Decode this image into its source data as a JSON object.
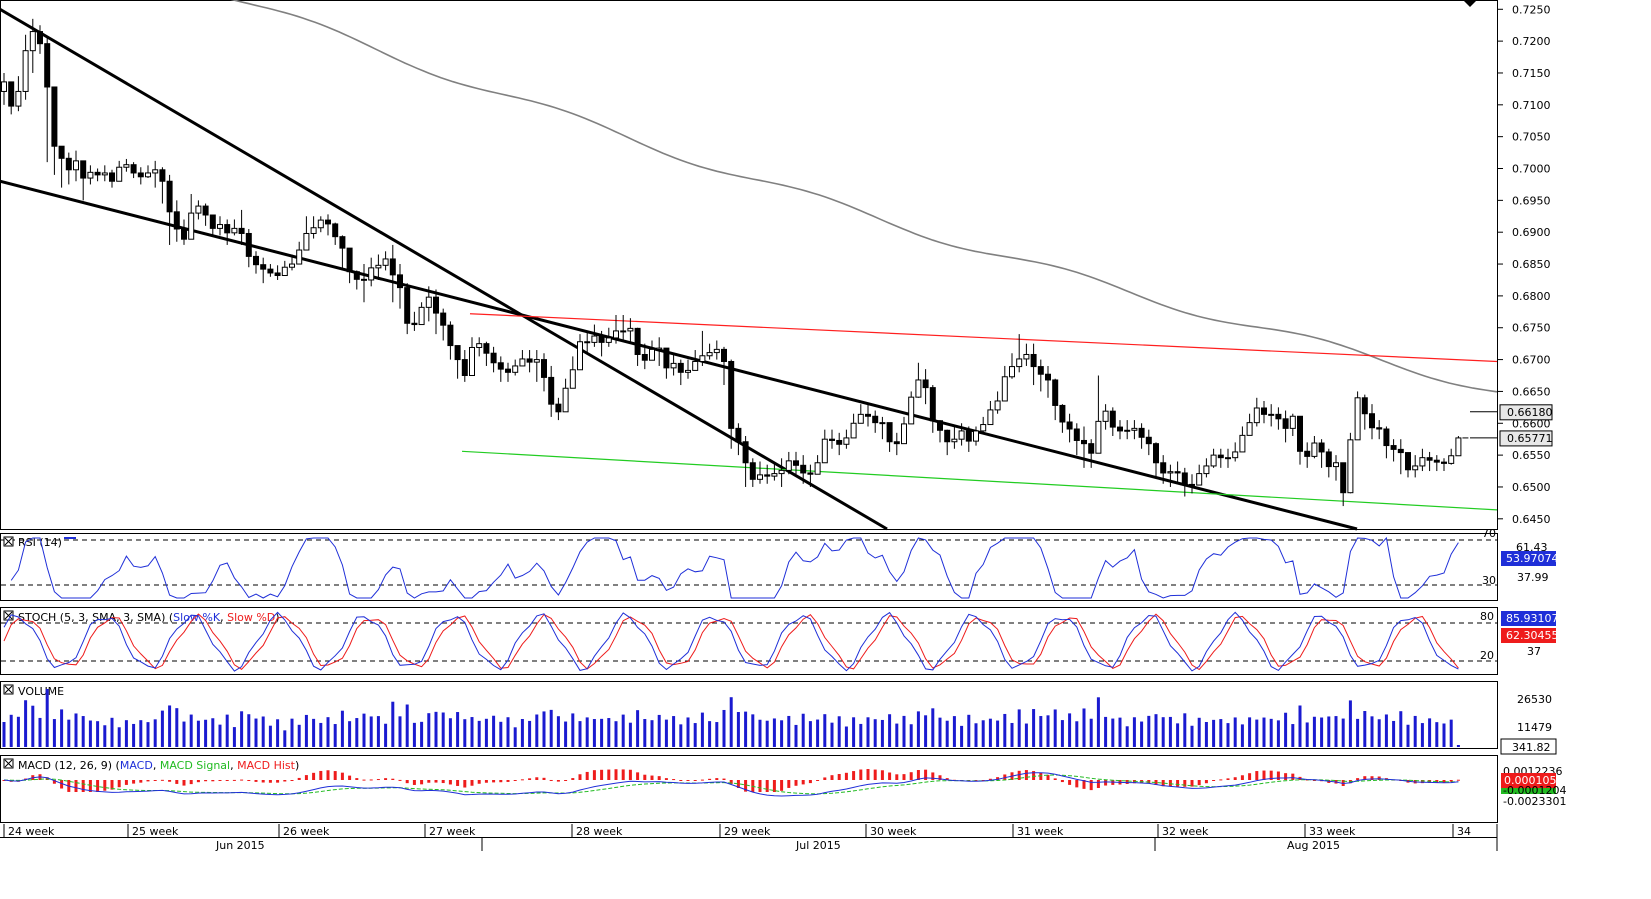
{
  "colors": {
    "up_candle": "#ffffff",
    "down_candle": "#000000",
    "channel": "#000000",
    "ma_line": "#808080",
    "resistance": "#ff2020",
    "support": "#22cc22",
    "indicator_blue": "#1f2fd8",
    "indicator_red": "#ee1c1c",
    "macd_signal": "#22bb22",
    "macd_hist": "#ee1c1c",
    "volume": "#1a1ad0"
  },
  "price_axis": {
    "ticks": [
      "0.7250",
      "0.7200",
      "0.7150",
      "0.7100",
      "0.7050",
      "0.7000",
      "0.6950",
      "0.6900",
      "0.6850",
      "0.6800",
      "0.6750",
      "0.6700",
      "0.6650",
      "0.6600",
      "0.6550",
      "0.6500",
      "0.6450"
    ],
    "ylim": [
      0.6434,
      0.7263
    ],
    "badges": [
      {
        "name": "ma-value-badge",
        "value": "0.66180"
      },
      {
        "name": "price-value-badge",
        "value": "0.65771"
      }
    ]
  },
  "panels": {
    "rsi": {
      "label": "RSI (14)",
      "levels": [
        "70",
        "61.43",
        "53.97074",
        "37.99",
        "30"
      ],
      "current": "53.97074"
    },
    "stoch": {
      "label_prefix": "STOCH (5, 3, SMA, 3, SMA)",
      "k_label": "Slow %K",
      "d_label": "Slow %D",
      "levels": [
        "80",
        "85.93107",
        "62.30455",
        "37",
        "20"
      ]
    },
    "volume": {
      "label": "VOLUME",
      "levels": [
        "26530",
        "11479",
        "341.82"
      ]
    },
    "macd": {
      "label_prefix": "MACD (12, 26, 9)",
      "macd_label": "MACD",
      "signal_label": "MACD Signal",
      "hist_label": "MACD Hist",
      "levels": [
        "0.0012236",
        "0.0001052",
        "-0.0001204",
        "-0.0023301"
      ]
    }
  },
  "time_axis": {
    "weeks": [
      "24 week",
      "25 week",
      "26 week",
      "27 week",
      "28 week",
      "29 week",
      "30 week",
      "31 week",
      "32 week",
      "33 week",
      "34"
    ],
    "months": [
      "Jun 2015",
      "Jul 2015",
      "Aug 2015"
    ]
  },
  "chart_data": {
    "type": "candlestick",
    "instrument_timeframe": "4-hour candles, weeks 24–34 of 2015",
    "ylim": [
      0.6434,
      0.7263
    ],
    "closes": [
      0.7136,
      0.7098,
      0.7121,
      0.7185,
      0.7215,
      0.7196,
      0.7128,
      0.7035,
      0.7016,
      0.6998,
      0.7012,
      0.6985,
      0.6994,
      0.699,
      0.6993,
      0.698,
      0.7002,
      0.7006,
      0.6993,
      0.6987,
      0.6993,
      0.6998,
      0.698,
      0.6932,
      0.6905,
      0.6889,
      0.693,
      0.6941,
      0.6927,
      0.6906,
      0.6912,
      0.6899,
      0.6906,
      0.6898,
      0.6862,
      0.6849,
      0.6842,
      0.6836,
      0.6832,
      0.6845,
      0.685,
      0.6872,
      0.6898,
      0.6907,
      0.6919,
      0.6913,
      0.6893,
      0.6875,
      0.6838,
      0.6826,
      0.6825,
      0.6844,
      0.6848,
      0.6858,
      0.6833,
      0.6813,
      0.6757,
      0.6755,
      0.6782,
      0.6798,
      0.6773,
      0.6754,
      0.6722,
      0.67,
      0.6675,
      0.6719,
      0.6725,
      0.671,
      0.6695,
      0.6685,
      0.668,
      0.669,
      0.6701,
      0.6696,
      0.67,
      0.6672,
      0.663,
      0.6618,
      0.6655,
      0.6684,
      0.6728,
      0.6727,
      0.6737,
      0.6727,
      0.6734,
      0.6745,
      0.6745,
      0.6749,
      0.6708,
      0.6699,
      0.6716,
      0.6718,
      0.6687,
      0.6694,
      0.668,
      0.6683,
      0.6697,
      0.6706,
      0.6711,
      0.6716,
      0.6697,
      0.6592,
      0.6571,
      0.6538,
      0.6512,
      0.6519,
      0.6517,
      0.6521,
      0.6526,
      0.6541,
      0.6534,
      0.6522,
      0.652,
      0.6538,
      0.6575,
      0.6573,
      0.6567,
      0.6577,
      0.66,
      0.6614,
      0.6611,
      0.6601,
      0.6601,
      0.6571,
      0.6568,
      0.6599,
      0.6641,
      0.6668,
      0.6656,
      0.6604,
      0.6589,
      0.6571,
      0.6575,
      0.6588,
      0.6572,
      0.6588,
      0.6598,
      0.6621,
      0.6635,
      0.6673,
      0.6689,
      0.6701,
      0.6708,
      0.6689,
      0.6677,
      0.6668,
      0.6628,
      0.6602,
      0.6591,
      0.6573,
      0.6568,
      0.6553,
      0.6603,
      0.6619,
      0.6594,
      0.6588,
      0.6589,
      0.6592,
      0.6578,
      0.6568,
      0.6538,
      0.6522,
      0.6524,
      0.6522,
      0.6504,
      0.6503,
      0.6521,
      0.6533,
      0.655,
      0.6546,
      0.6546,
      0.6555,
      0.6581,
      0.6601,
      0.6624,
      0.6614,
      0.6614,
      0.6607,
      0.6592,
      0.6611,
      0.6556,
      0.6548,
      0.6569,
      0.6555,
      0.6532,
      0.6538,
      0.6491,
      0.6574,
      0.664,
      0.6615,
      0.6593,
      0.6591,
      0.6565,
      0.6559,
      0.6554,
      0.6527,
      0.6533,
      0.6546,
      0.6542,
      0.6539,
      0.6537,
      0.6549,
      0.6577
    ],
    "lows": [
      0.71,
      0.7085,
      0.709,
      0.7108,
      0.715,
      0.718,
      0.701,
      0.699,
      0.697,
      0.6975,
      0.698,
      0.695,
      0.6975,
      0.698,
      0.698,
      0.697,
      0.6985,
      0.6995,
      0.6985,
      0.6975,
      0.6985,
      0.697,
      0.6945,
      0.688,
      0.6885,
      0.688,
      0.6915,
      0.692,
      0.691,
      0.6895,
      0.6895,
      0.688,
      0.6895,
      0.688,
      0.6845,
      0.6835,
      0.682,
      0.683,
      0.6825,
      0.6838,
      0.684,
      0.686,
      0.688,
      0.689,
      0.69,
      0.6895,
      0.688,
      0.684,
      0.682,
      0.681,
      0.679,
      0.6815,
      0.6825,
      0.684,
      0.679,
      0.678,
      0.674,
      0.6745,
      0.677,
      0.676,
      0.674,
      0.673,
      0.67,
      0.667,
      0.6665,
      0.67,
      0.6705,
      0.669,
      0.668,
      0.6665,
      0.6665,
      0.6675,
      0.669,
      0.668,
      0.6665,
      0.665,
      0.661,
      0.6605,
      0.662,
      0.666,
      0.67,
      0.671,
      0.672,
      0.6705,
      0.672,
      0.6725,
      0.673,
      0.6725,
      0.669,
      0.6685,
      0.67,
      0.669,
      0.667,
      0.6675,
      0.666,
      0.667,
      0.6685,
      0.669,
      0.67,
      0.67,
      0.666,
      0.656,
      0.655,
      0.65,
      0.65,
      0.6505,
      0.6505,
      0.651,
      0.65,
      0.652,
      0.652,
      0.6505,
      0.65,
      0.652,
      0.654,
      0.656,
      0.655,
      0.656,
      0.6585,
      0.66,
      0.6595,
      0.6585,
      0.6575,
      0.6555,
      0.655,
      0.6575,
      0.6615,
      0.664,
      0.663,
      0.6585,
      0.657,
      0.655,
      0.656,
      0.6565,
      0.6555,
      0.6565,
      0.6585,
      0.66,
      0.6615,
      0.6645,
      0.667,
      0.668,
      0.669,
      0.666,
      0.665,
      0.664,
      0.6605,
      0.6585,
      0.657,
      0.655,
      0.653,
      0.653,
      0.656,
      0.659,
      0.658,
      0.6575,
      0.6575,
      0.6575,
      0.656,
      0.655,
      0.6515,
      0.6505,
      0.65,
      0.6505,
      0.6485,
      0.649,
      0.6505,
      0.6515,
      0.653,
      0.653,
      0.653,
      0.654,
      0.6555,
      0.6585,
      0.6595,
      0.66,
      0.6595,
      0.659,
      0.657,
      0.658,
      0.6535,
      0.653,
      0.6545,
      0.653,
      0.6515,
      0.651,
      0.647,
      0.649,
      0.659,
      0.659,
      0.6575,
      0.6575,
      0.6545,
      0.654,
      0.652,
      0.6515,
      0.6515,
      0.6525,
      0.6525,
      0.6525,
      0.6525,
      0.6535,
      0.656
    ],
    "highs": [
      0.715,
      0.7125,
      0.7145,
      0.721,
      0.7235,
      0.7225,
      0.7205,
      0.7045,
      0.703,
      0.7025,
      0.7028,
      0.7,
      0.7005,
      0.7,
      0.7005,
      0.6998,
      0.7012,
      0.7015,
      0.701,
      0.7002,
      0.7005,
      0.7012,
      0.7002,
      0.699,
      0.695,
      0.692,
      0.696,
      0.695,
      0.6945,
      0.6925,
      0.6925,
      0.692,
      0.692,
      0.6935,
      0.6905,
      0.687,
      0.686,
      0.685,
      0.6848,
      0.6855,
      0.6865,
      0.6885,
      0.6925,
      0.6925,
      0.6925,
      0.6928,
      0.6915,
      0.6895,
      0.6865,
      0.684,
      0.685,
      0.686,
      0.6865,
      0.687,
      0.688,
      0.685,
      0.682,
      0.6775,
      0.679,
      0.6815,
      0.681,
      0.678,
      0.676,
      0.672,
      0.6715,
      0.6735,
      0.6735,
      0.6728,
      0.672,
      0.6705,
      0.6695,
      0.67,
      0.6715,
      0.6715,
      0.6715,
      0.671,
      0.669,
      0.664,
      0.667,
      0.6705,
      0.674,
      0.6745,
      0.6755,
      0.6745,
      0.675,
      0.677,
      0.677,
      0.6765,
      0.675,
      0.6725,
      0.673,
      0.6735,
      0.6715,
      0.671,
      0.67,
      0.67,
      0.6715,
      0.6745,
      0.6725,
      0.673,
      0.672,
      0.67,
      0.66,
      0.658,
      0.6545,
      0.654,
      0.6535,
      0.654,
      0.6545,
      0.6555,
      0.6555,
      0.655,
      0.6535,
      0.655,
      0.659,
      0.659,
      0.6585,
      0.659,
      0.6615,
      0.663,
      0.663,
      0.662,
      0.661,
      0.66,
      0.6585,
      0.661,
      0.665,
      0.6695,
      0.6685,
      0.666,
      0.6605,
      0.659,
      0.6595,
      0.66,
      0.6595,
      0.6595,
      0.661,
      0.6635,
      0.665,
      0.669,
      0.671,
      0.674,
      0.6725,
      0.6725,
      0.67,
      0.669,
      0.667,
      0.663,
      0.6615,
      0.66,
      0.6595,
      0.6575,
      0.6675,
      0.663,
      0.6625,
      0.6605,
      0.6605,
      0.6605,
      0.66,
      0.659,
      0.657,
      0.655,
      0.6535,
      0.654,
      0.653,
      0.652,
      0.6535,
      0.6545,
      0.656,
      0.656,
      0.656,
      0.657,
      0.6595,
      0.6615,
      0.664,
      0.6635,
      0.663,
      0.6625,
      0.662,
      0.6615,
      0.661,
      0.657,
      0.658,
      0.6575,
      0.656,
      0.655,
      0.652,
      0.6585,
      0.665,
      0.6645,
      0.663,
      0.6605,
      0.6595,
      0.6575,
      0.6575,
      0.655,
      0.655,
      0.656,
      0.6555,
      0.655,
      0.6545,
      0.656,
      0.658
    ],
    "overlays": {
      "channel_upper": [
        [
          0.725,
          0
        ],
        [
          0.6434,
          887
        ]
      ],
      "channel_lower": [
        [
          0.698,
          0
        ],
        [
          0.6434,
          1357
        ]
      ],
      "resistance_red": [
        [
          0.6772,
          470
        ],
        [
          0.6697,
          1497
        ]
      ],
      "support_green": [
        [
          0.6556,
          462
        ],
        [
          0.6464,
          1497
        ]
      ],
      "moving_average_end": 0.6618
    }
  }
}
